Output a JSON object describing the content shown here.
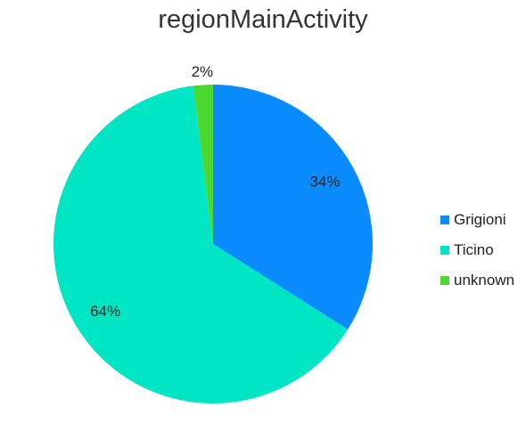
{
  "chart_data": {
    "type": "pie",
    "title": "regionMainActivity",
    "categories": [
      "Grigioni",
      "Ticino",
      "unknown"
    ],
    "values": [
      34,
      64,
      2
    ],
    "value_labels": [
      "34%",
      "64%",
      "2%"
    ],
    "colors": [
      "#0a8bff",
      "#00e5c4",
      "#4cd830"
    ],
    "legend_position": "right",
    "start_angle": "top, clockwise"
  }
}
